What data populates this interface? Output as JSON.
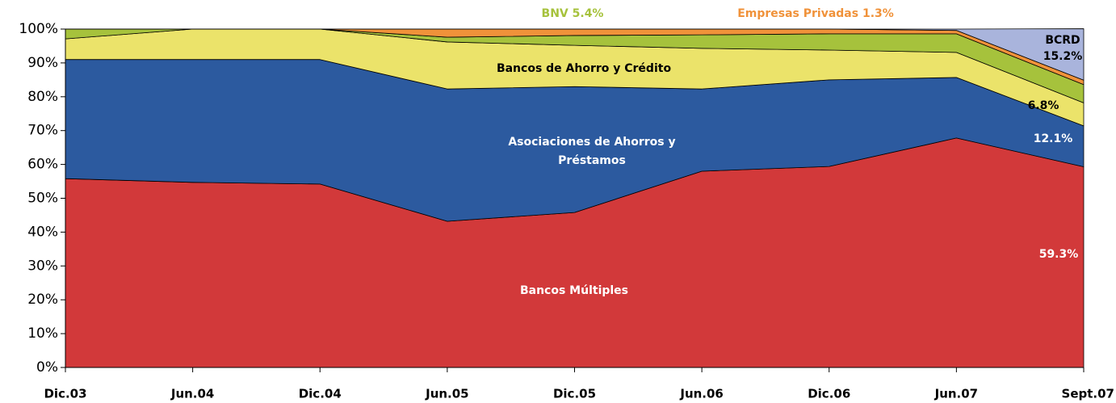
{
  "chart_data": {
    "type": "stacked_area",
    "categories": [
      "Dic.03",
      "Jun.04",
      "Dic.04",
      "Jun.05",
      "Dic.05",
      "Jun.06",
      "Dic.06",
      "Jun.07",
      "Sept.07"
    ],
    "series": [
      {
        "name": "Bancos  Múltiples",
        "color": "#d2393a",
        "values": [
          55.8,
          54.7,
          54.2,
          43.2,
          45.8,
          58,
          59.4,
          67.8,
          59.3
        ]
      },
      {
        "name": "Asociaciones de Ahorros y Préstamos",
        "color": "#2c5a9f",
        "values": [
          35.2,
          36.3,
          36.8,
          39.1,
          37.2,
          24.3,
          25.6,
          17.9,
          12.1
        ]
      },
      {
        "name": "Bancos de Ahorro y Crédito",
        "color": "#ebe36a",
        "values": [
          6.1,
          9,
          9,
          13.9,
          12.2,
          12,
          8.8,
          7.4,
          6.8
        ]
      },
      {
        "name": "BNV",
        "color": "#a6c23c",
        "values": [
          2.9,
          0,
          0,
          1.4,
          2.9,
          4,
          4.8,
          5.5,
          5.4
        ]
      },
      {
        "name": "Empresas Privadas",
        "color": "#f0923a",
        "values": [
          0,
          0,
          0,
          2.4,
          1.9,
          1.7,
          1.4,
          1.0,
          1.3
        ]
      },
      {
        "name": "BCRD",
        "color": "#a9b4dc",
        "values": [
          0,
          0,
          0,
          0,
          0,
          0,
          0,
          0.4,
          15.2
        ]
      }
    ],
    "annotations": [
      [
        "BNV 5.4%"
      ],
      [
        "Empresas Privadas 1.3%"
      ],
      [
        "Bancos de Ahorro y Crédito"
      ],
      [
        "Asociaciones de Ahorros y",
        "Préstamos"
      ],
      [
        "Bancos  Múltiples"
      ],
      [
        "59.3%"
      ],
      [
        "12.1%"
      ],
      [
        "6.8%"
      ],
      [
        "BCRD",
        "15.2%"
      ]
    ],
    "ylim": [
      0,
      100
    ],
    "yticks": [
      {
        "value": 0,
        "label": "0%"
      },
      {
        "value": 10,
        "label": "10%"
      },
      {
        "value": 20,
        "label": "20%"
      },
      {
        "value": 30,
        "label": "30%"
      },
      {
        "value": 40,
        "label": "40%"
      },
      {
        "value": 50,
        "label": "50%"
      },
      {
        "value": 60,
        "label": "60%"
      },
      {
        "value": 70,
        "label": "70%"
      },
      {
        "value": 80,
        "label": "80%"
      },
      {
        "value": 90,
        "label": "90%"
      },
      {
        "value": 100,
        "label": "100%"
      }
    ]
  }
}
